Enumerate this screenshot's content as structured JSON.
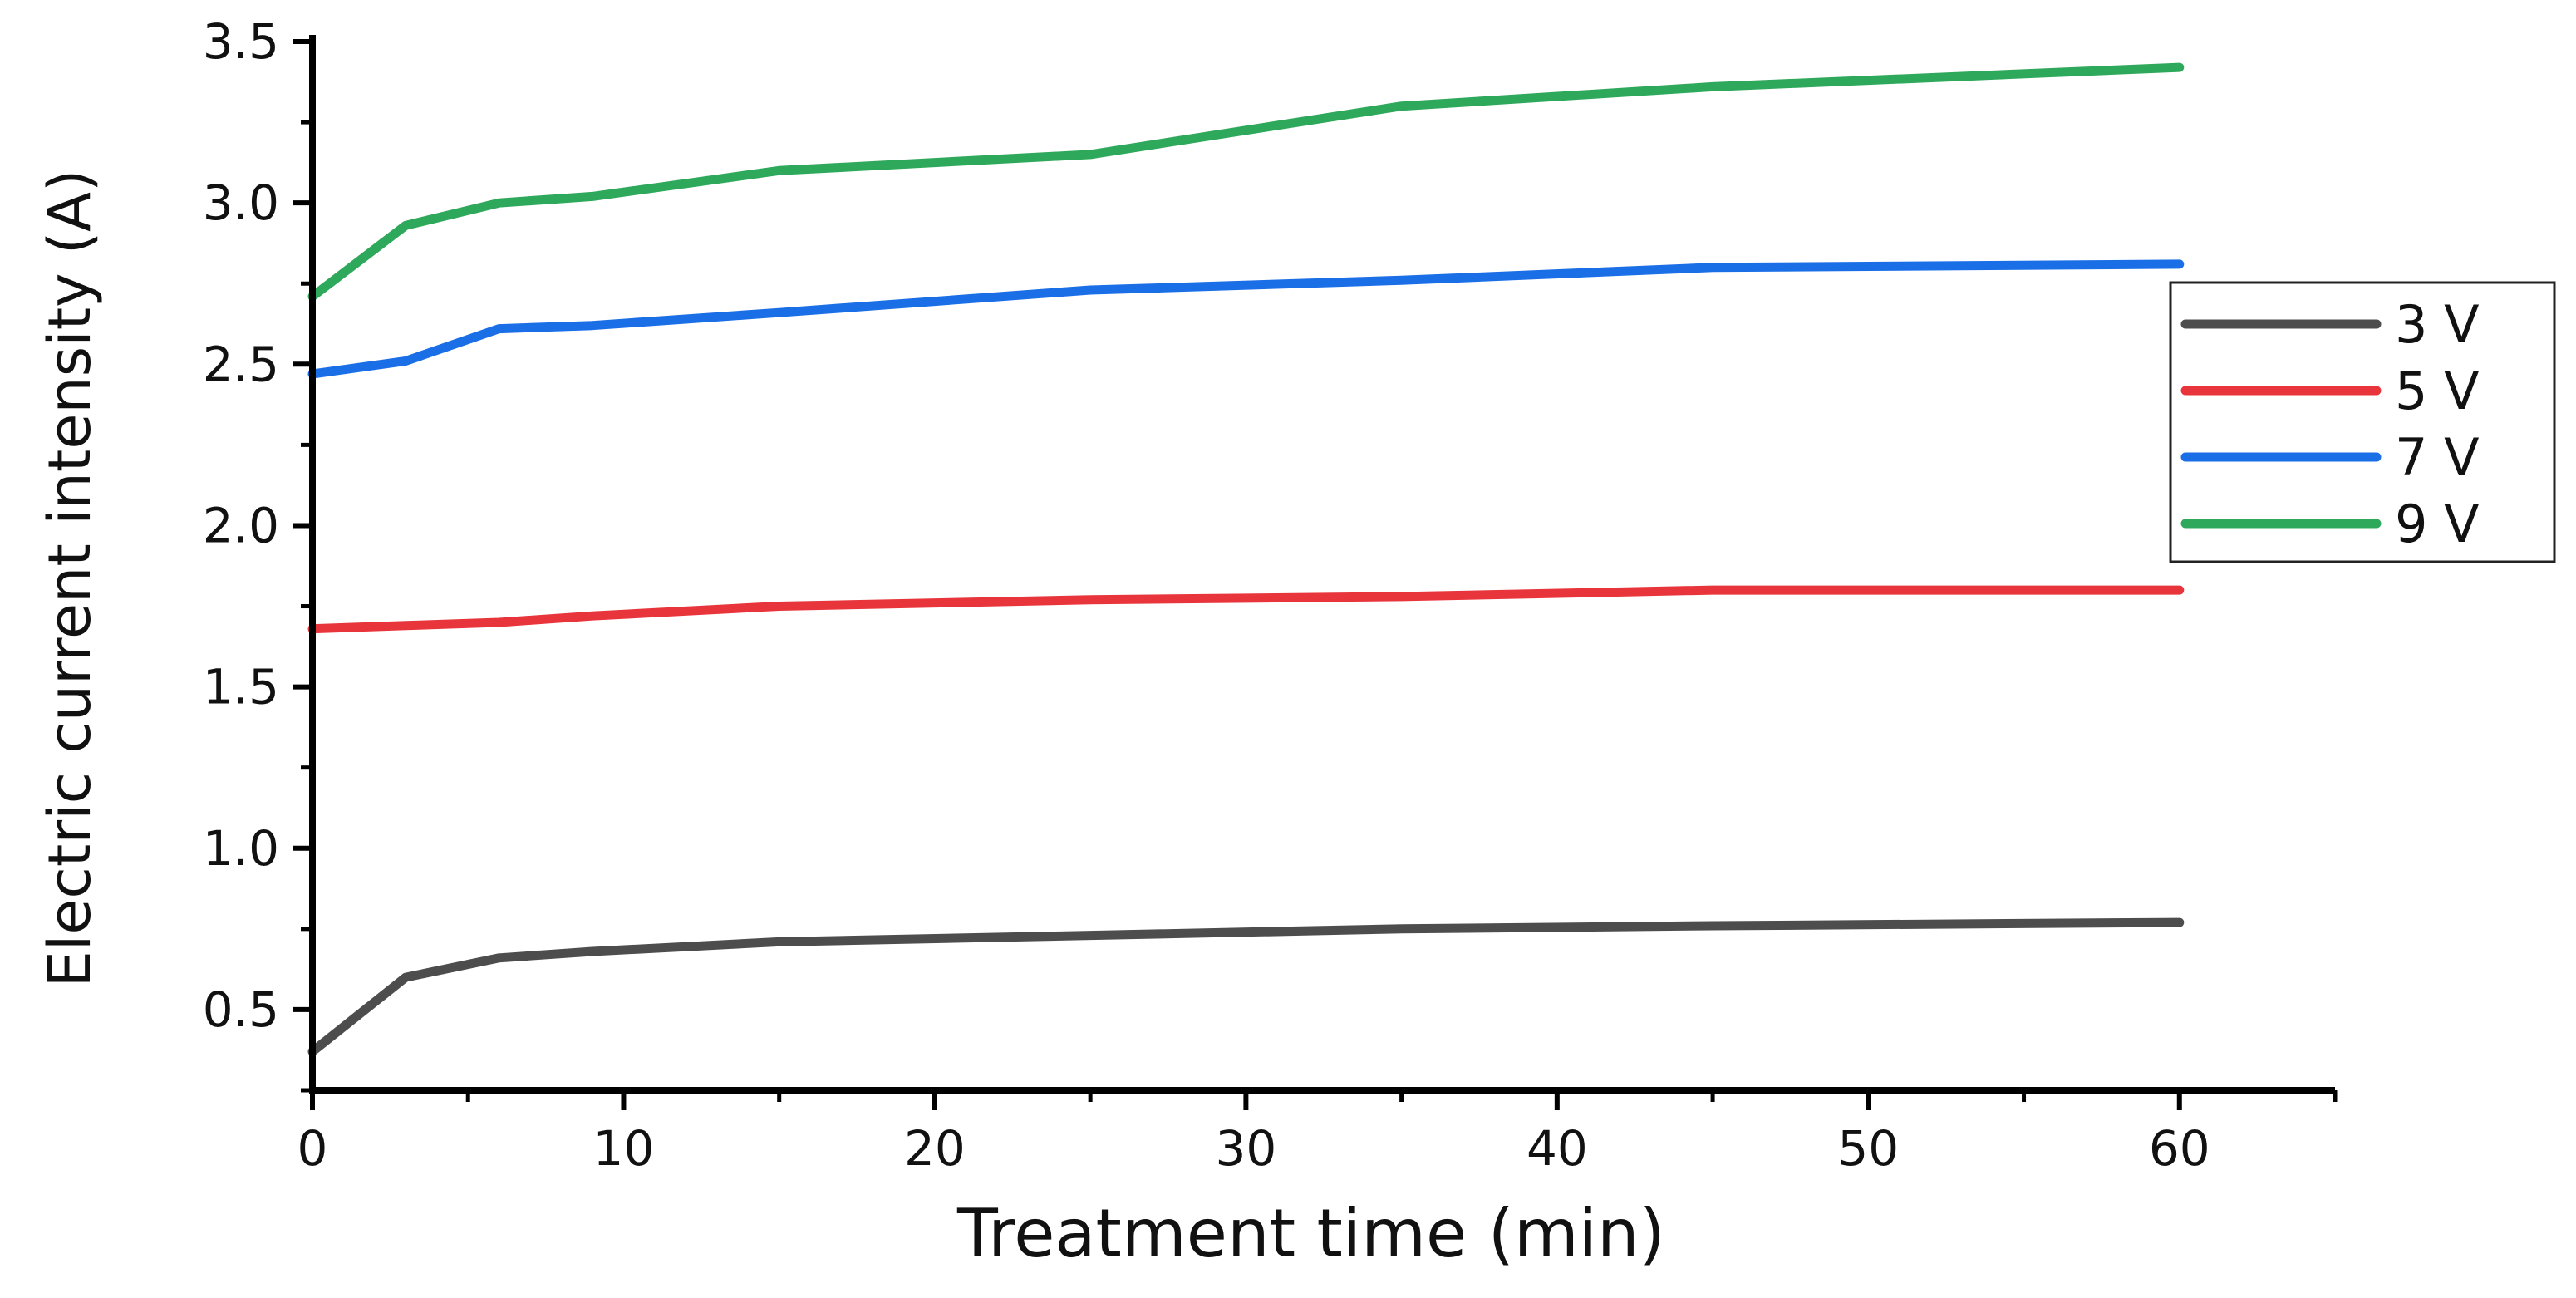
{
  "chart_data": {
    "type": "line",
    "title": "",
    "xlabel": "Treatment time (min)",
    "ylabel": "Electric current intensity (A)",
    "xlim": [
      0,
      65
    ],
    "ylim": [
      0.25,
      3.5
    ],
    "xticks": [
      0,
      10,
      20,
      30,
      40,
      50,
      60
    ],
    "xtick_labels": [
      "0",
      "10",
      "20",
      "30",
      "40",
      "50",
      "60"
    ],
    "yticks": [
      0.5,
      1.0,
      1.5,
      2.0,
      2.5,
      3.0,
      3.5
    ],
    "ytick_labels": [
      "0.5",
      "1.0",
      "1.5",
      "2.0",
      "2.5",
      "3.0",
      "3.5"
    ],
    "grid": false,
    "legend_position": "right",
    "series": [
      {
        "name": "3 V",
        "color": "#4d4d4d",
        "x": [
          0,
          3,
          6,
          9,
          15,
          25,
          35,
          45,
          60
        ],
        "y": [
          0.37,
          0.6,
          0.66,
          0.68,
          0.71,
          0.73,
          0.75,
          0.76,
          0.77
        ]
      },
      {
        "name": "5 V",
        "color": "#e8353b",
        "x": [
          0,
          3,
          6,
          9,
          15,
          25,
          35,
          45,
          60
        ],
        "y": [
          1.68,
          1.69,
          1.7,
          1.72,
          1.75,
          1.77,
          1.78,
          1.8,
          1.8
        ]
      },
      {
        "name": "7 V",
        "color": "#1a6ee6",
        "x": [
          0,
          3,
          6,
          9,
          15,
          25,
          35,
          45,
          60
        ],
        "y": [
          2.47,
          2.51,
          2.61,
          2.62,
          2.66,
          2.73,
          2.76,
          2.8,
          2.81
        ]
      },
      {
        "name": "9 V",
        "color": "#2ea85a",
        "x": [
          0,
          3,
          6,
          9,
          15,
          25,
          35,
          45,
          60
        ],
        "y": [
          2.71,
          2.93,
          3.0,
          3.02,
          3.1,
          3.15,
          3.3,
          3.36,
          3.42
        ]
      }
    ]
  }
}
